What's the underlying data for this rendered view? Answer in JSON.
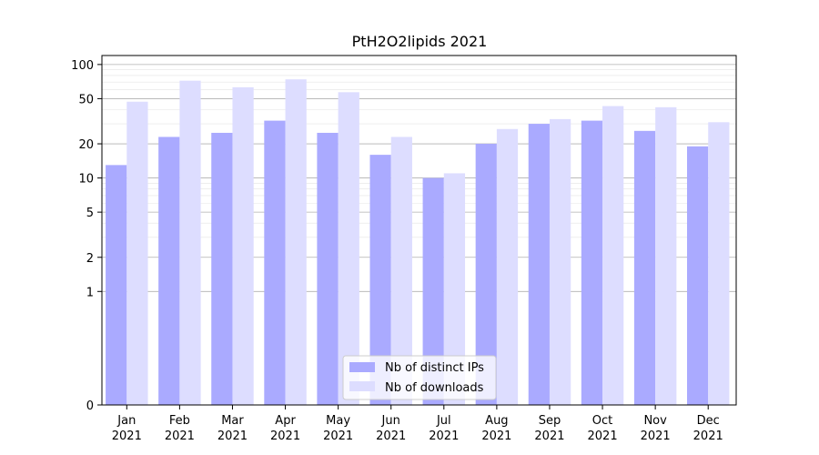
{
  "chart_data": {
    "type": "bar",
    "title": "PtH2O2lipids 2021",
    "xlabel": "",
    "ylabel": "",
    "yscale": "symlog",
    "ylim": [
      0,
      120
    ],
    "yticks": [
      0,
      1,
      2,
      5,
      10,
      20,
      50,
      100
    ],
    "grid": true,
    "legend_position": "lower-center",
    "categories": [
      "Jan\n2021",
      "Feb\n2021",
      "Mar\n2021",
      "Apr\n2021",
      "May\n2021",
      "Jun\n2021",
      "Jul\n2021",
      "Aug\n2021",
      "Sep\n2021",
      "Oct\n2021",
      "Nov\n2021",
      "Dec\n2021"
    ],
    "series": [
      {
        "name": "Nb of distinct IPs",
        "color": "#aaaaff",
        "values": [
          13,
          23,
          25,
          32,
          25,
          16,
          10,
          20,
          30,
          32,
          26,
          19
        ]
      },
      {
        "name": "Nb of downloads",
        "color": "#ddddff",
        "values": [
          47,
          72,
          63,
          74,
          57,
          23,
          11,
          27,
          33,
          43,
          42,
          31
        ]
      }
    ]
  }
}
